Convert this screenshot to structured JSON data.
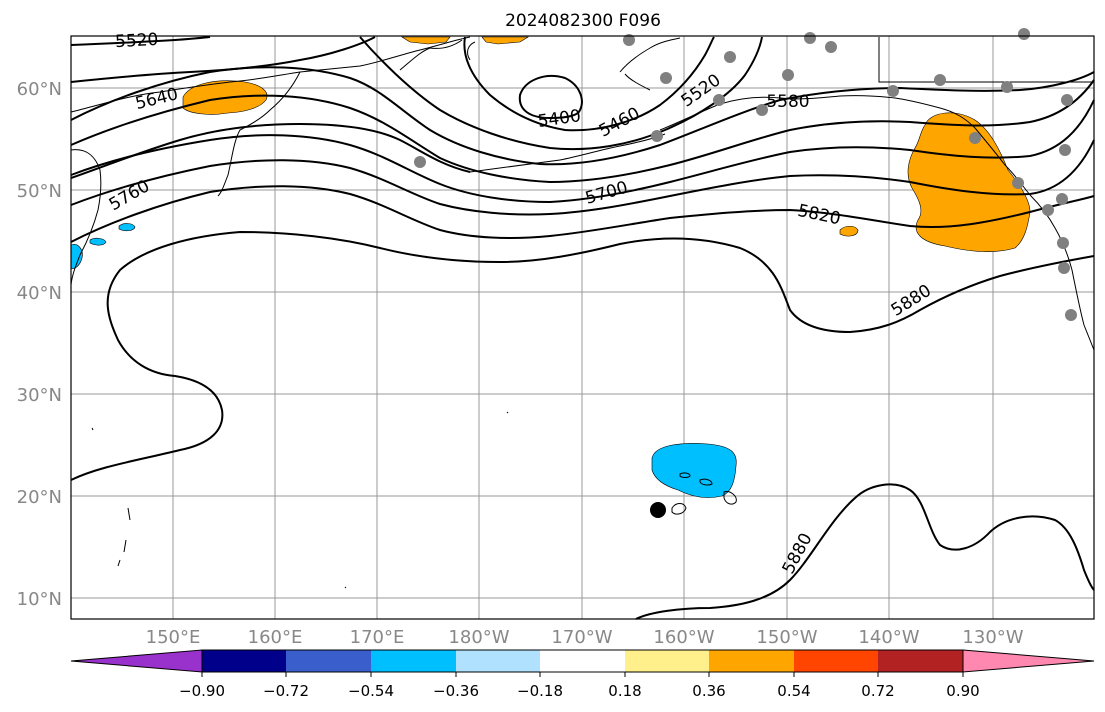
{
  "title": "2024082300 F096",
  "map": {
    "lat_labels": [
      "60°N",
      "50°N",
      "40°N",
      "30°N",
      "20°N",
      "10°N"
    ],
    "lon_labels": [
      "150°E",
      "160°E",
      "170°E",
      "180°W",
      "170°W",
      "160°W",
      "150°W",
      "140°W",
      "130°W"
    ],
    "contour_labels": [
      "5520",
      "5640",
      "5760",
      "5400",
      "5460",
      "5520",
      "5580",
      "5700",
      "5820",
      "5880",
      "5880"
    ],
    "colors": {
      "land_line": "#000000",
      "contour": "#000000",
      "grid": "#999999",
      "positive_fill": "#ffa500",
      "negative_fill": "#00bfff",
      "station_dot": "#808080"
    }
  },
  "colorbar": {
    "tick_labels": [
      "−0.90",
      "−0.72",
      "−0.54",
      "−0.36",
      "−0.18",
      "0.18",
      "0.36",
      "0.54",
      "0.72",
      "0.90"
    ],
    "colors": [
      "#9932cc",
      "#00008b",
      "#3a5fcd",
      "#00bfff",
      "#b0e2ff",
      "#ffffff",
      "#fff08c",
      "#ffa500",
      "#ff4500",
      "#b22222",
      "#ff88b0"
    ]
  }
}
